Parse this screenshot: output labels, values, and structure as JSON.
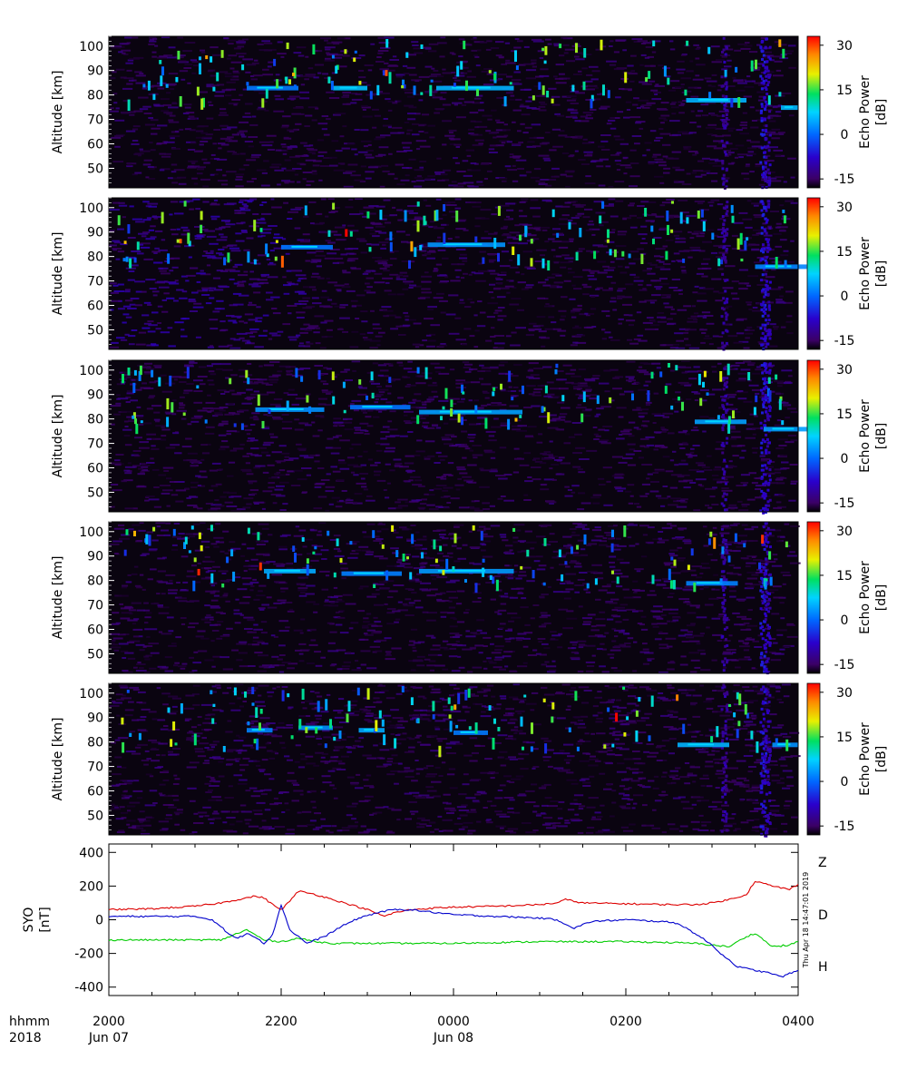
{
  "chart_data": [
    {
      "type": "heatmap",
      "panel": 1,
      "ylabel": "Altitude [km]",
      "yticks": [
        50,
        60,
        70,
        80,
        90,
        100
      ],
      "ylim": [
        42,
        104
      ],
      "colorbar_label_line1": "Echo Power",
      "colorbar_label_line2": "[dB]",
      "colorbar_ticks": [
        30,
        15,
        0,
        -15
      ],
      "zlim": [
        -18,
        33
      ],
      "echo_layers": [
        {
          "x": [
            21.6,
            22.2
          ],
          "alt": 83
        },
        {
          "x": [
            22.6,
            23.0
          ],
          "alt": 83
        },
        {
          "x": [
            23.8,
            24.7
          ],
          "alt": 83
        },
        {
          "x": [
            26.7,
            27.4
          ],
          "alt": 78
        },
        {
          "x": [
            27.8,
            28.0
          ],
          "alt": 75
        }
      ]
    },
    {
      "type": "heatmap",
      "panel": 2,
      "ylabel": "Altitude [km]",
      "yticks": [
        50,
        60,
        70,
        80,
        90,
        100
      ],
      "ylim": [
        42,
        104
      ],
      "colorbar_label_line1": "Echo Power",
      "colorbar_label_line2": "[dB]",
      "colorbar_ticks": [
        30,
        15,
        0,
        -15
      ],
      "zlim": [
        -18,
        33
      ],
      "echo_layers": [
        {
          "x": [
            22.0,
            22.6
          ],
          "alt": 84
        },
        {
          "x": [
            23.7,
            24.6
          ],
          "alt": 85
        },
        {
          "x": [
            27.5,
            28.1
          ],
          "alt": 76
        }
      ]
    },
    {
      "type": "heatmap",
      "panel": 3,
      "ylabel": "Altitude [km]",
      "yticks": [
        50,
        60,
        70,
        80,
        90,
        100
      ],
      "ylim": [
        42,
        104
      ],
      "colorbar_label_line1": "Echo Power",
      "colorbar_label_line2": "[dB]",
      "colorbar_ticks": [
        30,
        15,
        0,
        -15
      ],
      "zlim": [
        -18,
        33
      ],
      "echo_layers": [
        {
          "x": [
            21.7,
            22.5
          ],
          "alt": 84
        },
        {
          "x": [
            22.8,
            23.5
          ],
          "alt": 85
        },
        {
          "x": [
            23.6,
            24.8
          ],
          "alt": 83
        },
        {
          "x": [
            26.8,
            27.4
          ],
          "alt": 79
        },
        {
          "x": [
            27.6,
            28.1
          ],
          "alt": 76
        }
      ]
    },
    {
      "type": "heatmap",
      "panel": 4,
      "ylabel": "Altitude [km]",
      "yticks": [
        50,
        60,
        70,
        80,
        90,
        100
      ],
      "ylim": [
        42,
        104
      ],
      "colorbar_label_line1": "Echo Power",
      "colorbar_label_line2": "[dB]",
      "colorbar_ticks": [
        30,
        15,
        0,
        -15
      ],
      "zlim": [
        -18,
        33
      ],
      "echo_layers": [
        {
          "x": [
            21.8,
            22.4
          ],
          "alt": 84
        },
        {
          "x": [
            22.7,
            23.4
          ],
          "alt": 83
        },
        {
          "x": [
            23.6,
            24.7
          ],
          "alt": 84
        },
        {
          "x": [
            26.7,
            27.3
          ],
          "alt": 79
        }
      ]
    },
    {
      "type": "heatmap",
      "panel": 5,
      "ylabel": "Altitude [km]",
      "yticks": [
        50,
        60,
        70,
        80,
        90,
        100
      ],
      "ylim": [
        42,
        104
      ],
      "colorbar_label_line1": "Echo Power",
      "colorbar_label_line2": "[dB]",
      "colorbar_ticks": [
        30,
        15,
        0,
        -15
      ],
      "zlim": [
        -18,
        33
      ],
      "echo_layers": [
        {
          "x": [
            21.6,
            21.9
          ],
          "alt": 85
        },
        {
          "x": [
            22.2,
            22.6
          ],
          "alt": 86
        },
        {
          "x": [
            22.9,
            23.2
          ],
          "alt": 85
        },
        {
          "x": [
            24.0,
            24.4
          ],
          "alt": 84
        },
        {
          "x": [
            26.6,
            27.2
          ],
          "alt": 79
        },
        {
          "x": [
            27.7,
            28.0
          ],
          "alt": 79
        }
      ]
    },
    {
      "type": "line",
      "panel": 6,
      "ylabel_line1": "SYO",
      "ylabel_line2": "[nT]",
      "yticks": [
        400,
        200,
        0,
        -200,
        -400
      ],
      "ylim": [
        -450,
        450
      ],
      "xlim": [
        20,
        28
      ],
      "series": [
        {
          "name": "Z",
          "color": "#dd0000",
          "x": [
            20.0,
            20.5,
            21.0,
            21.3,
            21.5,
            21.7,
            21.8,
            21.9,
            22.0,
            22.1,
            22.2,
            22.4,
            22.6,
            22.8,
            23.0,
            23.2,
            23.3,
            23.5,
            23.8,
            24.0,
            24.5,
            25.0,
            25.2,
            25.3,
            25.5,
            26.0,
            26.5,
            26.8,
            27.0,
            27.2,
            27.4,
            27.5,
            27.7,
            27.9,
            28.0
          ],
          "y": [
            60,
            65,
            80,
            100,
            120,
            140,
            130,
            90,
            60,
            110,
            170,
            150,
            120,
            90,
            60,
            20,
            40,
            60,
            70,
            75,
            80,
            90,
            100,
            120,
            100,
            95,
            90,
            90,
            100,
            120,
            150,
            230,
            200,
            180,
            210
          ]
        },
        {
          "name": "D",
          "color": "#00cc00",
          "x": [
            20.0,
            20.5,
            21.0,
            21.3,
            21.4,
            21.5,
            21.6,
            21.7,
            21.8,
            22.0,
            22.2,
            22.4,
            22.6,
            23.0,
            24.0,
            25.0,
            26.0,
            26.5,
            26.8,
            27.0,
            27.2,
            27.4,
            27.5,
            27.7,
            27.9,
            28.0
          ],
          "y": [
            -120,
            -120,
            -120,
            -120,
            -100,
            -80,
            -60,
            -90,
            -120,
            -130,
            -110,
            -130,
            -140,
            -140,
            -140,
            -130,
            -130,
            -135,
            -140,
            -150,
            -160,
            -100,
            -80,
            -160,
            -150,
            -130
          ]
        },
        {
          "name": "H",
          "color": "#0000cc",
          "x": [
            20.0,
            20.5,
            21.0,
            21.2,
            21.3,
            21.4,
            21.5,
            21.6,
            21.7,
            21.8,
            21.9,
            22.0,
            22.1,
            22.3,
            22.5,
            22.7,
            22.9,
            23.1,
            23.3,
            23.5,
            24.0,
            24.5,
            25.0,
            25.2,
            25.4,
            25.6,
            26.0,
            26.4,
            26.6,
            26.8,
            27.0,
            27.1,
            27.3,
            27.5,
            27.7,
            27.8,
            28.0
          ],
          "y": [
            20,
            20,
            20,
            0,
            -40,
            -90,
            -110,
            -80,
            -100,
            -140,
            -90,
            90,
            -60,
            -140,
            -100,
            -40,
            10,
            40,
            60,
            60,
            30,
            20,
            10,
            0,
            -50,
            -10,
            0,
            -10,
            -20,
            -80,
            -150,
            -200,
            -280,
            -300,
            -320,
            -340,
            -300
          ]
        }
      ]
    }
  ],
  "x_axis": {
    "row_label": "hhmm",
    "year": "2018",
    "ticks": [
      {
        "x": 20,
        "label": "2000",
        "date": "Jun 07"
      },
      {
        "x": 22,
        "label": "2200",
        "date": ""
      },
      {
        "x": 24,
        "label": "0000",
        "date": "Jun 08"
      },
      {
        "x": 26,
        "label": "0200",
        "date": ""
      },
      {
        "x": 28,
        "label": "0400",
        "date": ""
      }
    ]
  },
  "timestamp": "Thu Apr 18 14:47:01 2019",
  "colors": {
    "heatmap_bg": "#0a0410",
    "colorscale": [
      "#000000",
      "#3b0066",
      "#2a00cc",
      "#0066ff",
      "#00d4ff",
      "#00e060",
      "#e8f000",
      "#ff8800",
      "#ff0000"
    ]
  }
}
